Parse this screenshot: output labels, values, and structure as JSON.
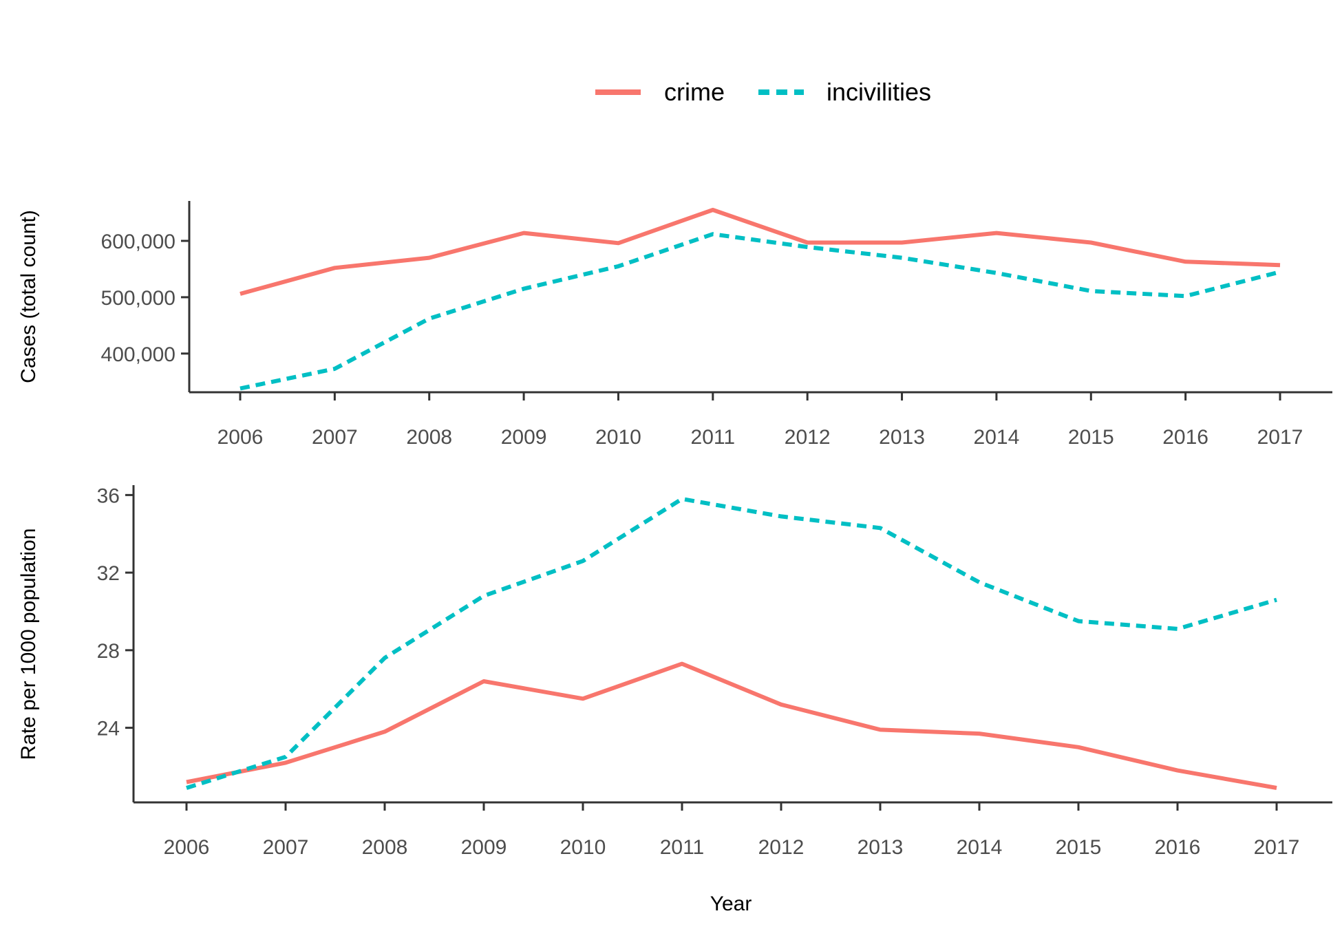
{
  "legend": {
    "position": "top-center",
    "items": [
      {
        "name": "crime",
        "color": "#F8766D",
        "linetype": "solid"
      },
      {
        "name": "incivilities",
        "color": "#00BFC4",
        "linetype": "dashed"
      }
    ]
  },
  "xlabel": "Year",
  "chart_data": [
    {
      "type": "line",
      "ylabel": "Cases (total count)",
      "x": [
        2006,
        2007,
        2008,
        2009,
        2010,
        2011,
        2012,
        2013,
        2014,
        2015,
        2016,
        2017
      ],
      "x_tick_labels": [
        "2006",
        "2007",
        "2008",
        "2009",
        "2010",
        "2011",
        "2012",
        "2013",
        "2014",
        "2015",
        "2016",
        "2017"
      ],
      "y_ticks": [
        400000,
        500000,
        600000
      ],
      "y_tick_labels": [
        "400,000",
        "500,000",
        "600,000"
      ],
      "xlim": [
        2006,
        2017
      ],
      "ylim": [
        335000,
        655000
      ],
      "grid": false,
      "series": [
        {
          "name": "crime",
          "color": "#F8766D",
          "linetype": "solid",
          "values": [
            506000,
            552000,
            570000,
            614000,
            596000,
            655000,
            597000,
            597000,
            614000,
            597000,
            563000,
            557000
          ]
        },
        {
          "name": "incivilities",
          "color": "#00BFC4",
          "linetype": "dashed",
          "values": [
            338000,
            373000,
            462000,
            515000,
            555000,
            612000,
            589000,
            570000,
            543000,
            511000,
            502000,
            545000
          ]
        }
      ]
    },
    {
      "type": "line",
      "ylabel": "Rate per 1000 population",
      "x": [
        2006,
        2007,
        2008,
        2009,
        2010,
        2011,
        2012,
        2013,
        2014,
        2015,
        2016,
        2017
      ],
      "x_tick_labels": [
        "2006",
        "2007",
        "2008",
        "2009",
        "2010",
        "2011",
        "2012",
        "2013",
        "2014",
        "2015",
        "2016",
        "2017"
      ],
      "y_ticks": [
        24,
        28,
        32,
        36
      ],
      "y_tick_labels": [
        "24",
        "28",
        "32",
        "36"
      ],
      "xlim": [
        2006,
        2017
      ],
      "ylim": [
        20.9,
        35.8
      ],
      "grid": false,
      "series": [
        {
          "name": "crime",
          "color": "#F8766D",
          "linetype": "solid",
          "values": [
            21.2,
            22.2,
            23.8,
            26.4,
            25.5,
            27.3,
            25.2,
            23.9,
            23.7,
            23.0,
            21.8,
            20.9
          ]
        },
        {
          "name": "incivilities",
          "color": "#00BFC4",
          "linetype": "dashed",
          "values": [
            20.9,
            22.5,
            27.6,
            30.8,
            32.6,
            35.8,
            34.9,
            34.3,
            31.5,
            29.5,
            29.1,
            30.6
          ]
        }
      ]
    }
  ]
}
